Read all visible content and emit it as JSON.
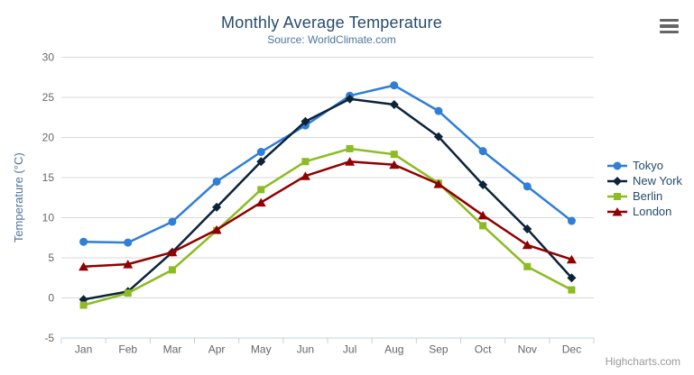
{
  "header": {
    "export_menu_icon": "hamburger-icon"
  },
  "chart_data": {
    "type": "line",
    "title": "Monthly Average Temperature",
    "subtitle": "Source: WorldClimate.com",
    "xlabel": "",
    "ylabel": "Temperature (°C)",
    "categories": [
      "Jan",
      "Feb",
      "Mar",
      "Apr",
      "May",
      "Jun",
      "Jul",
      "Aug",
      "Sep",
      "Oct",
      "Nov",
      "Dec"
    ],
    "yticks": [
      -5,
      0,
      5,
      10,
      15,
      20,
      25,
      30
    ],
    "ylim": [
      -5,
      30
    ],
    "grid": true,
    "legend_position": "right",
    "colors": {
      "title": "#274b6d",
      "subtitle": "#4d759e",
      "axis_label": "#666666",
      "axis_title": "#4d759e",
      "gridline": "#d8d8d8",
      "axis_line": "#c0d0e0",
      "background": "#ffffff"
    },
    "series": [
      {
        "name": "Tokyo",
        "color": "#2f7ed8",
        "marker": "circle",
        "values": [
          7.0,
          6.9,
          9.5,
          14.5,
          18.2,
          21.5,
          25.2,
          26.5,
          23.3,
          18.3,
          13.9,
          9.6
        ]
      },
      {
        "name": "New York",
        "color": "#0d233a",
        "marker": "diamond",
        "values": [
          -0.2,
          0.8,
          5.7,
          11.3,
          17.0,
          22.0,
          24.8,
          24.1,
          20.1,
          14.1,
          8.6,
          2.5
        ]
      },
      {
        "name": "Berlin",
        "color": "#8bbc21",
        "marker": "square",
        "values": [
          -0.9,
          0.6,
          3.5,
          8.4,
          13.5,
          17.0,
          18.6,
          17.9,
          14.3,
          9.0,
          3.9,
          1.0
        ]
      },
      {
        "name": "London",
        "color": "#910000",
        "marker": "triangle",
        "values": [
          3.9,
          4.2,
          5.7,
          8.5,
          11.9,
          15.2,
          17.0,
          16.6,
          14.2,
          10.3,
          6.6,
          4.8
        ]
      }
    ],
    "credit": "Highcharts.com"
  }
}
